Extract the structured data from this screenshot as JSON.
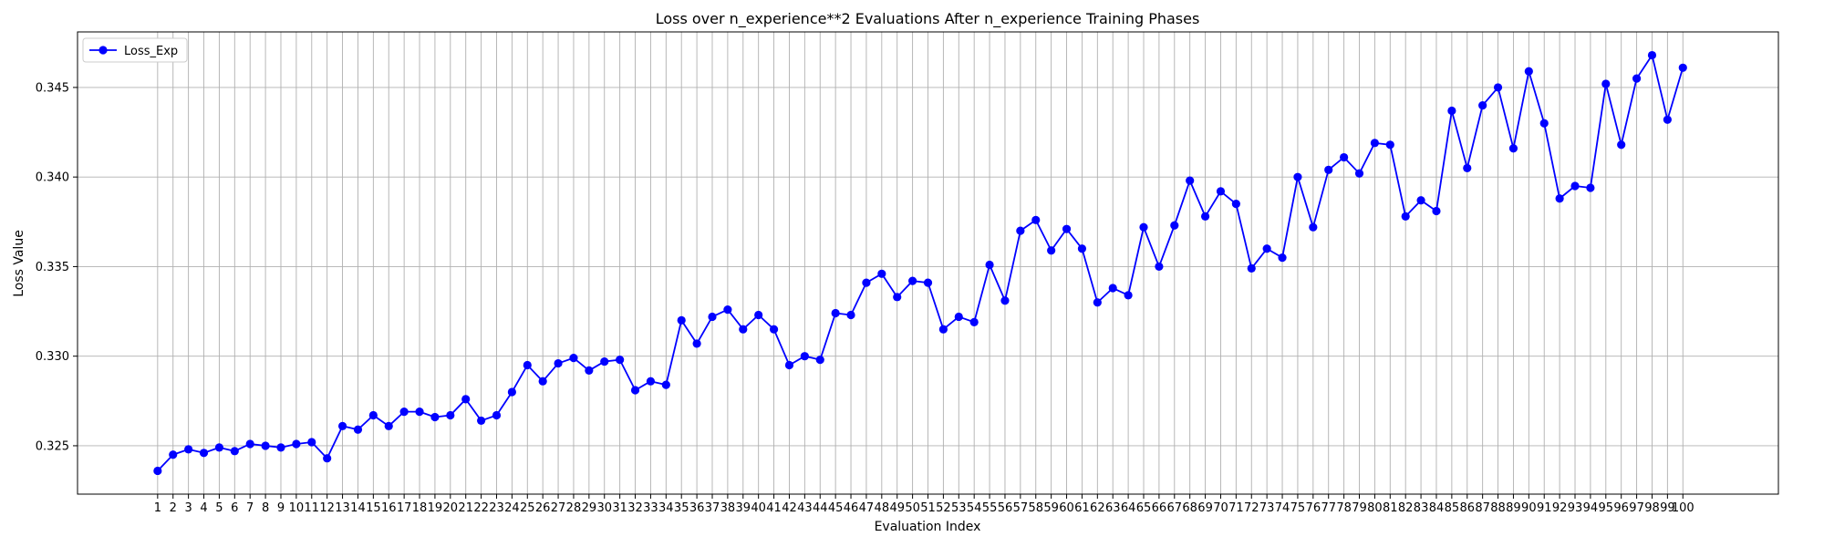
{
  "chart_data": {
    "type": "line",
    "title": "Loss over n_experience**2 Evaluations After n_experience Training Phases",
    "xlabel": "Evaluation Index",
    "ylabel": "Loss Value",
    "xlim": [
      -4.2,
      106.2
    ],
    "ylim": [
      0.3223,
      0.3481
    ],
    "yticks": [
      0.325,
      0.33,
      0.335,
      0.34,
      0.345
    ],
    "ytick_labels": [
      "0.325",
      "0.330",
      "0.335",
      "0.340",
      "0.345"
    ],
    "grid": true,
    "legend": "top-left",
    "colors": {
      "line": "#0000ff",
      "grid": "#b0b0b0"
    },
    "series": [
      {
        "name": "Loss_Exp",
        "x": [
          1,
          2,
          3,
          4,
          5,
          6,
          7,
          8,
          9,
          10,
          11,
          12,
          13,
          14,
          15,
          16,
          17,
          18,
          19,
          20,
          21,
          22,
          23,
          24,
          25,
          26,
          27,
          28,
          29,
          30,
          31,
          32,
          33,
          34,
          35,
          36,
          37,
          38,
          39,
          40,
          41,
          42,
          43,
          44,
          45,
          46,
          47,
          48,
          49,
          50,
          51,
          52,
          53,
          54,
          55,
          56,
          57,
          58,
          59,
          60,
          61,
          62,
          63,
          64,
          65,
          66,
          67,
          68,
          69,
          70,
          71,
          72,
          73,
          74,
          75,
          76,
          77,
          78,
          79,
          80,
          81,
          82,
          83,
          84,
          85,
          86,
          87,
          88,
          89,
          90,
          91,
          92,
          93,
          94,
          95,
          96,
          97,
          98,
          99,
          100
        ],
        "values": [
          0.3236,
          0.3245,
          0.3248,
          0.3246,
          0.3249,
          0.3247,
          0.3251,
          0.325,
          0.3249,
          0.3251,
          0.3252,
          0.3243,
          0.3261,
          0.3259,
          0.3267,
          0.3261,
          0.3269,
          0.3269,
          0.3266,
          0.3267,
          0.3276,
          0.3264,
          0.3267,
          0.328,
          0.3295,
          0.3286,
          0.3296,
          0.3299,
          0.3292,
          0.3297,
          0.3298,
          0.3281,
          0.3286,
          0.3284,
          0.332,
          0.3307,
          0.3322,
          0.3326,
          0.3315,
          0.3323,
          0.3315,
          0.3295,
          0.33,
          0.3298,
          0.3324,
          0.3323,
          0.3341,
          0.3346,
          0.3333,
          0.3342,
          0.3341,
          0.3315,
          0.3322,
          0.3319,
          0.3351,
          0.3331,
          0.337,
          0.3376,
          0.3359,
          0.3371,
          0.336,
          0.333,
          0.3338,
          0.3334,
          0.3372,
          0.335,
          0.3373,
          0.3398,
          0.3378,
          0.3392,
          0.3385,
          0.3349,
          0.336,
          0.3355,
          0.34,
          0.3372,
          0.3404,
          0.3411,
          0.3402,
          0.3419,
          0.3418,
          0.3378,
          0.3387,
          0.3381,
          0.3437,
          0.3405,
          0.344,
          0.345,
          0.3416,
          0.3459,
          0.343,
          0.3388,
          0.3395,
          0.3394,
          0.3452,
          0.3418,
          0.3455,
          0.3468,
          0.3432,
          0.3461
        ]
      }
    ]
  }
}
